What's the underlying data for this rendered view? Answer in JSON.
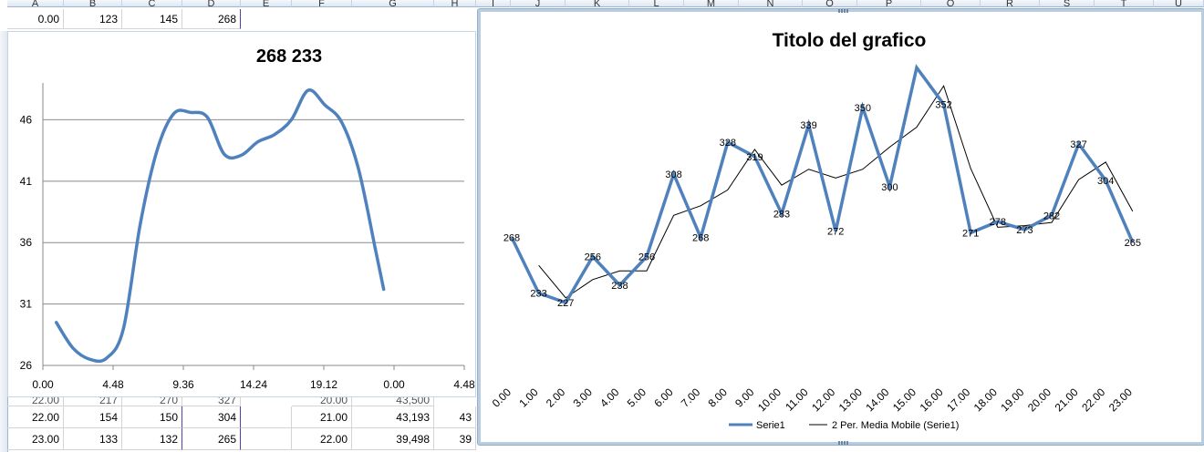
{
  "sheet": {
    "columns": [
      "A",
      "B",
      "C",
      "D",
      "E",
      "F",
      "G",
      "H",
      "I",
      "J",
      "K",
      "L",
      "M",
      "N",
      "O",
      "P",
      "Q",
      "R",
      "S",
      "T",
      "U"
    ],
    "top_row": [
      "0.00",
      "123",
      "145",
      "268"
    ],
    "bottom_rows": [
      [
        "22.00",
        "154",
        "150",
        "304",
        "",
        "21.00",
        "43,193",
        "43"
      ],
      [
        "23.00",
        "133",
        "132",
        "265",
        "",
        "22.00",
        "39,498",
        "39"
      ]
    ],
    "partial_row": [
      "22.00",
      "217",
      "270",
      "327",
      "",
      "20.00",
      "43,500",
      ""
    ]
  },
  "chart_data": [
    {
      "type": "line",
      "title": "268 233",
      "smooth": true,
      "x_tick_labels": [
        "0.00",
        "4.48",
        "9.36",
        "14.24",
        "19.12",
        "0.00",
        "4.48"
      ],
      "y_ticks": [
        26,
        31,
        36,
        41,
        46
      ],
      "ylim": [
        26,
        49
      ],
      "grid": "horizontal",
      "color": "#4f81bd",
      "series": [
        {
          "x": [
            0.0,
            1.0,
            2.0,
            3.0,
            4.0,
            5.0,
            6.0,
            7.0,
            8.0,
            9.0,
            10.0,
            11.0,
            12.0,
            13.0,
            14.0,
            15.0,
            16.0,
            17.0,
            18.0,
            19.0
          ],
          "values": [
            29.5,
            27.4,
            26.5,
            26.6,
            29.0,
            37.5,
            43.5,
            46.5,
            46.6,
            46.2,
            43.2,
            43.1,
            44.2,
            44.8,
            46.0,
            48.4,
            47.2,
            45.8,
            42.0,
            35.5
          ]
        },
        {
          "x": [
            19.0,
            19.5
          ],
          "values": [
            35.5,
            32.2
          ]
        }
      ],
      "x_range": [
        -0.8,
        24.3
      ]
    },
    {
      "type": "line",
      "title": "Titolo del grafico",
      "categories": [
        "0.00",
        "1.00",
        "2.00",
        "3.00",
        "4.00",
        "5.00",
        "6.00",
        "7.00",
        "8.00",
        "9.00",
        "10.00",
        "11.00",
        "12.00",
        "13.00",
        "14.00",
        "15.00",
        "16.00",
        "17.00",
        "18.00",
        "19.00",
        "20.00",
        "21.00",
        "22.00",
        "23.00"
      ],
      "legend_position": "bottom",
      "series": [
        {
          "name": "Serie1",
          "color": "#4f81bd",
          "values": [
            268,
            233,
            227,
            256,
            238,
            256,
            308,
            268,
            328,
            319,
            283,
            339,
            272,
            350,
            300,
            375,
            352,
            271,
            278,
            273,
            282,
            327,
            304,
            265
          ],
          "labels": [
            "268",
            "233",
            "227",
            "256",
            "238",
            "256",
            "308",
            "268",
            "328",
            "319",
            "283",
            "339",
            "272",
            "350",
            "300",
            "",
            "352",
            "271",
            "278",
            "273",
            "282",
            "327",
            "304",
            "265"
          ]
        },
        {
          "name": "2 Per. Media Mobile (Serie1)",
          "color": "#000000",
          "values": [
            null,
            250.5,
            230,
            241.5,
            247,
            247,
            282,
            288,
            298,
            323.5,
            301,
            311,
            305.5,
            311,
            325,
            337.5,
            363.5,
            311.5,
            274.5,
            275.5,
            277.5,
            304.5,
            315.5,
            284.5
          ]
        }
      ],
      "ylim": [
        215,
        378
      ]
    }
  ]
}
